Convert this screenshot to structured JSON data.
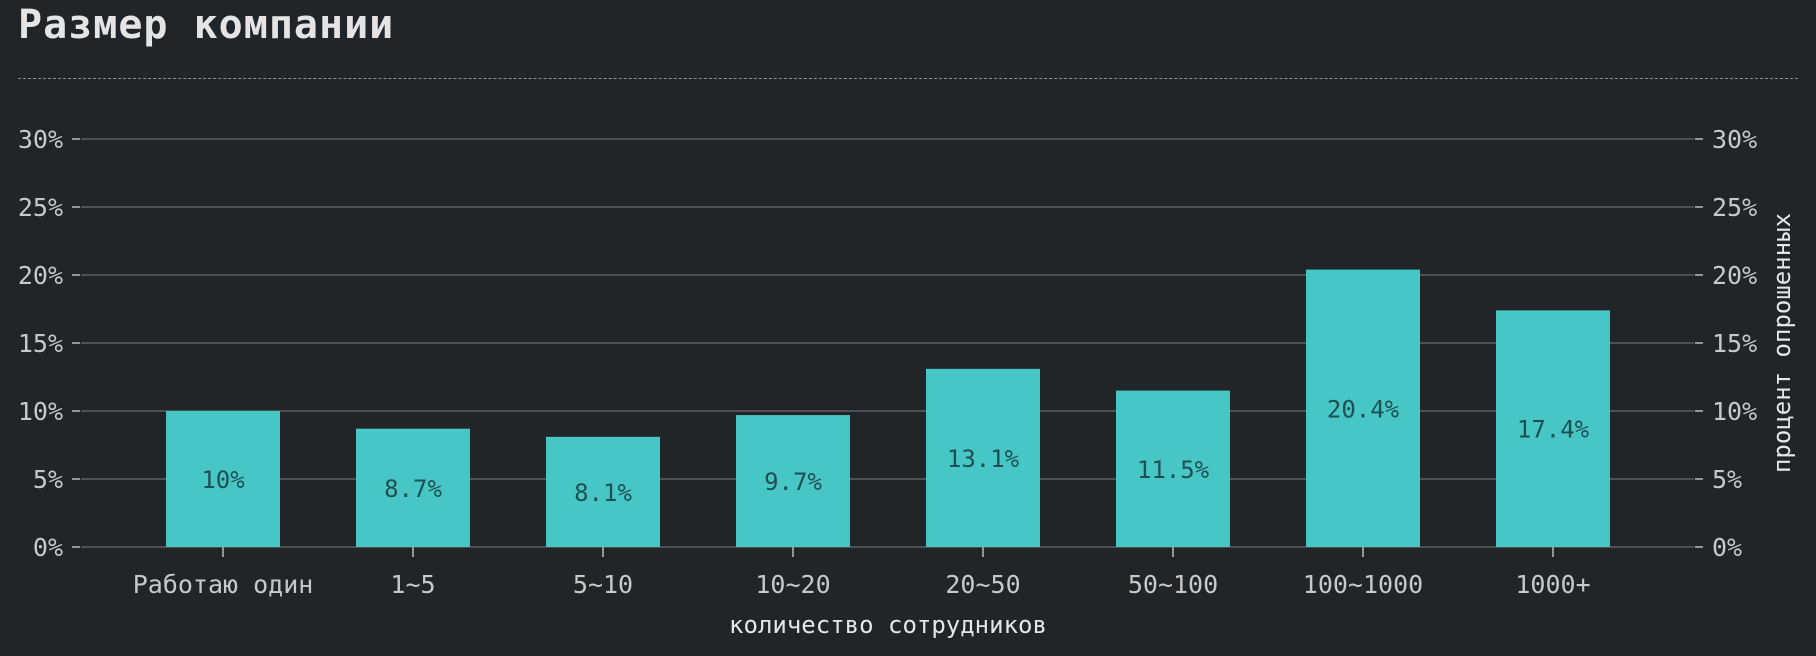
{
  "title": "Размер компании",
  "chart_data": {
    "type": "bar",
    "categories": [
      "Работаю один",
      "1~5",
      "5~10",
      "10~20",
      "20~50",
      "50~100",
      "100~1000",
      "1000+"
    ],
    "values": [
      10,
      8.7,
      8.1,
      9.7,
      13.1,
      11.5,
      20.4,
      17.4
    ],
    "value_labels": [
      "10%",
      "8.7%",
      "8.1%",
      "9.7%",
      "13.1%",
      "11.5%",
      "20.4%",
      "17.4%"
    ],
    "ylim": [
      0,
      30
    ],
    "yticks": [
      "0%",
      "5%",
      "10%",
      "15%",
      "20%",
      "25%",
      "30%"
    ],
    "ytick_values": [
      0,
      5,
      10,
      15,
      20,
      25,
      30
    ],
    "xlabel": "количество сотрудников",
    "ylabel": "процент опрошенных",
    "grid": true,
    "bar_color": "#47c6c6",
    "background": "#212527"
  }
}
